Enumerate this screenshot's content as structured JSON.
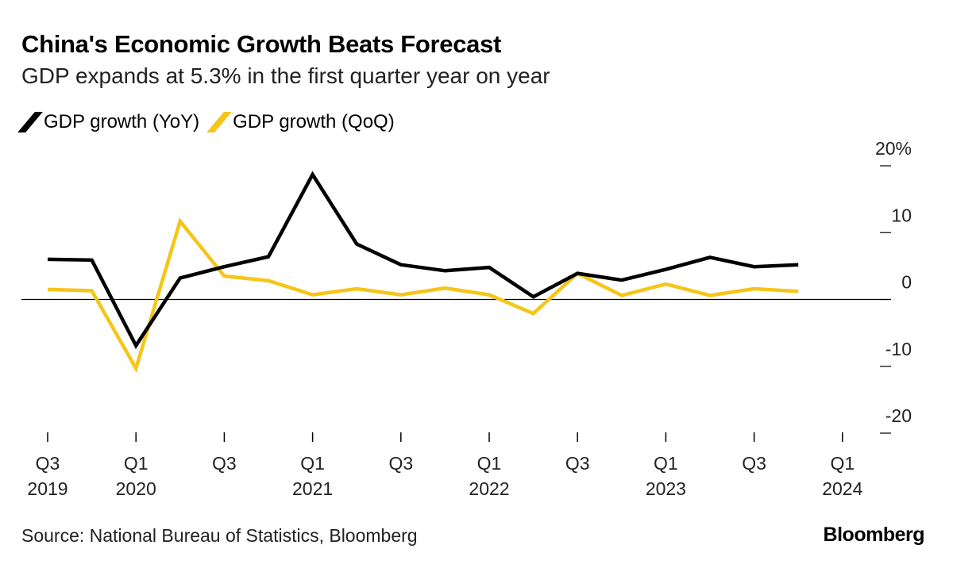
{
  "header": {
    "title": "China's Economic Growth Beats Forecast",
    "subtitle": "GDP expands at 5.3% in the first quarter year on year"
  },
  "legend": {
    "items": [
      {
        "label": "GDP growth (YoY)",
        "color": "#000000"
      },
      {
        "label": "GDP growth (QoQ)",
        "color": "#F5C518"
      }
    ]
  },
  "footer": {
    "source": "Source: National Bureau of Statistics, Bloomberg",
    "brand": "Bloomberg"
  },
  "chart_data": {
    "type": "line",
    "title": "China's Economic Growth Beats Forecast",
    "xlabel": "",
    "ylabel": "",
    "ylim": [
      -20,
      20
    ],
    "y_ticks": [
      {
        "value": 20,
        "label": "20%"
      },
      {
        "value": 10,
        "label": "10"
      },
      {
        "value": 0,
        "label": "0"
      },
      {
        "value": -10,
        "label": "-10"
      },
      {
        "value": -20,
        "label": "-20"
      }
    ],
    "x": [
      "Q3 2019",
      "Q4 2019",
      "Q1 2020",
      "Q2 2020",
      "Q3 2020",
      "Q4 2020",
      "Q1 2021",
      "Q2 2021",
      "Q3 2021",
      "Q4 2021",
      "Q1 2022",
      "Q2 2022",
      "Q3 2022",
      "Q4 2022",
      "Q1 2023",
      "Q2 2023",
      "Q3 2023",
      "Q4 2023"
    ],
    "x_ticks": [
      {
        "index": 0,
        "line1": "Q3",
        "line2": "2019"
      },
      {
        "index": 2,
        "line1": "Q1",
        "line2": "2020"
      },
      {
        "index": 4,
        "line1": "Q3",
        "line2": ""
      },
      {
        "index": 6,
        "line1": "Q1",
        "line2": "2021"
      },
      {
        "index": 8,
        "line1": "Q3",
        "line2": ""
      },
      {
        "index": 10,
        "line1": "Q1",
        "line2": "2022"
      },
      {
        "index": 12,
        "line1": "Q3",
        "line2": ""
      },
      {
        "index": 14,
        "line1": "Q1",
        "line2": "2023"
      },
      {
        "index": 16,
        "line1": "Q3",
        "line2": ""
      },
      {
        "index": 18,
        "line1": "Q1",
        "line2": "2024"
      }
    ],
    "series": [
      {
        "name": "GDP growth (YoY)",
        "color": "#000000",
        "values": [
          6.0,
          5.9,
          -6.9,
          3.2,
          4.9,
          6.4,
          18.7,
          8.3,
          5.2,
          4.3,
          4.8,
          0.4,
          3.9,
          2.9,
          4.5,
          6.3,
          4.9,
          5.2
        ]
      },
      {
        "name": "GDP growth (QoQ)",
        "color": "#F5C518",
        "values": [
          1.5,
          1.3,
          -10.3,
          11.7,
          3.5,
          2.8,
          0.7,
          1.6,
          0.7,
          1.7,
          0.7,
          -2.1,
          3.9,
          0.6,
          2.3,
          0.6,
          1.6,
          1.2
        ]
      }
    ]
  }
}
